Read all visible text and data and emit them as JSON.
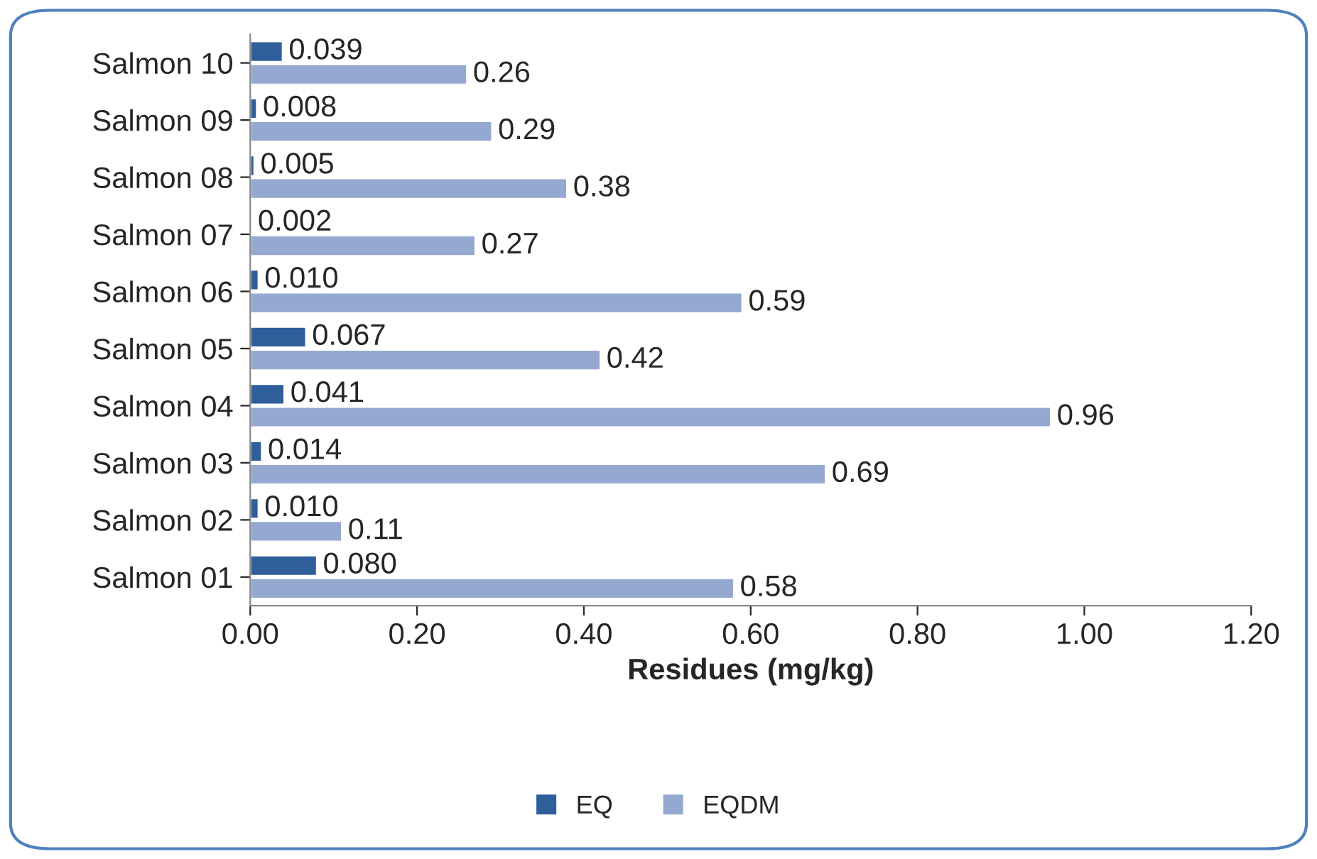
{
  "chart_data": {
    "type": "bar",
    "orientation": "horizontal",
    "xlabel": "Residues (mg/kg)",
    "categories": [
      "Salmon 10",
      "Salmon 09",
      "Salmon 08",
      "Salmon 07",
      "Salmon 06",
      "Salmon 05",
      "Salmon 04",
      "Salmon 03",
      "Salmon 02",
      "Salmon 01"
    ],
    "series": [
      {
        "name": "EQ",
        "color": "#2e5f9a",
        "values": [
          0.039,
          0.008,
          0.005,
          0.002,
          0.01,
          0.067,
          0.041,
          0.014,
          0.01,
          0.08
        ],
        "value_labels": [
          "0.039",
          "0.008",
          "0.005",
          "0.002",
          "0.010",
          "0.067",
          "0.041",
          "0.014",
          "0.010",
          "0.080"
        ]
      },
      {
        "name": "EQDM",
        "color": "#95a8d0",
        "values": [
          0.26,
          0.29,
          0.38,
          0.27,
          0.59,
          0.42,
          0.96,
          0.69,
          0.11,
          0.58
        ],
        "value_labels": [
          "0.26",
          "0.29",
          "0.38",
          "0.27",
          "0.59",
          "0.42",
          "0.96",
          "0.69",
          "0.11",
          "0.58"
        ]
      }
    ],
    "xlim": [
      0,
      1.2
    ],
    "xticks": [
      {
        "value": 0,
        "label": "0.00"
      },
      {
        "value": 0.2,
        "label": "0.20"
      },
      {
        "value": 0.4,
        "label": "0.40"
      },
      {
        "value": 0.6,
        "label": "0.60"
      },
      {
        "value": 0.8,
        "label": "0.80"
      },
      {
        "value": 1.0,
        "label": "1.00"
      },
      {
        "value": 1.2,
        "label": "1.20"
      }
    ],
    "grid": false,
    "legend": "bottom"
  }
}
